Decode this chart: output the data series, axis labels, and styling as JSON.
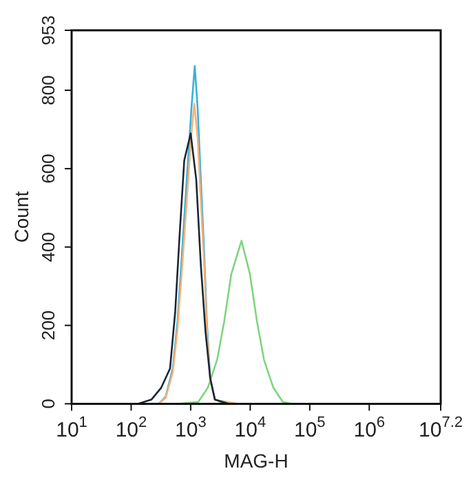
{
  "chart_data": {
    "type": "line",
    "xlabel": "MAG-H",
    "ylabel": "Count",
    "log": "x",
    "xlim": [
      10,
      15848932
    ],
    "xticks": [
      {
        "value": 10,
        "label": "10$^{1}$"
      },
      {
        "value": 100,
        "label": "10$^{2}$"
      },
      {
        "value": 1000,
        "label": "10$^{3}$"
      },
      {
        "value": 10000,
        "label": "10$^{4}$"
      },
      {
        "value": 100000,
        "label": "10$^{5}$"
      },
      {
        "value": 1000000,
        "label": "10$^{6}$"
      },
      {
        "value": 15848932,
        "label": "10$^{7.2}$"
      }
    ],
    "ylim": [
      0,
      953
    ],
    "yticks": [
      0,
      200,
      400,
      600,
      800,
      953
    ],
    "grid": false,
    "legend": false,
    "marker": "none",
    "line_style": "solid",
    "series": [
      {
        "color": "#1c2633",
        "x": [
          130,
          220,
          320,
          450,
          550,
          650,
          780,
          1000,
          1240,
          1480,
          1770,
          2130,
          2550,
          4400
        ],
        "values": [
          0,
          11,
          41,
          90,
          235,
          428,
          621,
          690,
          572,
          355,
          186,
          65,
          11,
          0
        ]
      },
      {
        "color": "#f2b27a",
        "x": [
          290,
          380,
          500,
          600,
          720,
          860,
          1030,
          1150,
          1310,
          1480,
          1680,
          1870,
          2130,
          2550,
          4000,
          6000
        ],
        "values": [
          0,
          15,
          80,
          190,
          350,
          520,
          690,
          765,
          680,
          520,
          360,
          190,
          60,
          10,
          5,
          0
        ]
      },
      {
        "color": "#3ab0d8",
        "x": [
          290,
          380,
          500,
          600,
          720,
          860,
          1030,
          1170,
          1310,
          1480,
          1680,
          1870,
          2130,
          2550,
          3720
        ],
        "values": [
          0,
          18,
          90,
          210,
          391,
          573,
          754,
          862,
          754,
          573,
          391,
          210,
          65,
          11,
          0
        ]
      },
      {
        "color": "#7ed47e",
        "x": [
          650,
          1350,
          1940,
          2790,
          3660,
          4810,
          7140,
          9890,
          13000,
          17000,
          24500,
          35100,
          50000
        ],
        "values": [
          0,
          5,
          41,
          113,
          210,
          331,
          416,
          331,
          210,
          113,
          41,
          5,
          0
        ]
      }
    ]
  }
}
